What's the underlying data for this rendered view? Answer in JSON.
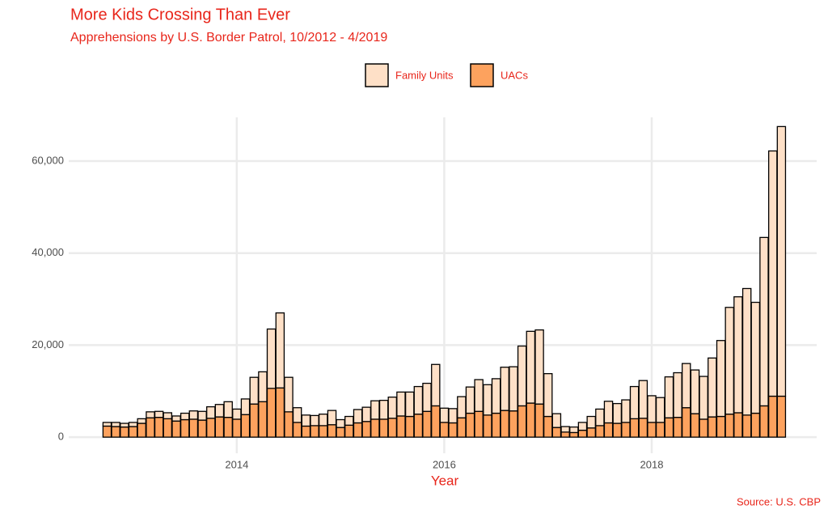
{
  "chart_data": {
    "type": "bar",
    "stacked": true,
    "title": "More Kids Crossing Than Ever",
    "subtitle": "Apprehensions by U.S. Border Patrol, 10/2012 - 4/2019",
    "x_label": "Year",
    "source": "Source: U.S. CBP",
    "x": [
      2012.75,
      2012.833,
      2012.917,
      2013,
      2013.083,
      2013.167,
      2013.25,
      2013.333,
      2013.417,
      2013.5,
      2013.583,
      2013.667,
      2013.75,
      2013.833,
      2013.917,
      2014,
      2014.083,
      2014.167,
      2014.25,
      2014.333,
      2014.417,
      2014.5,
      2014.583,
      2014.667,
      2014.75,
      2014.833,
      2014.917,
      2015,
      2015.083,
      2015.167,
      2015.25,
      2015.333,
      2015.417,
      2015.5,
      2015.583,
      2015.667,
      2015.75,
      2015.833,
      2015.917,
      2016,
      2016.083,
      2016.167,
      2016.25,
      2016.333,
      2016.417,
      2016.5,
      2016.583,
      2016.667,
      2016.75,
      2016.833,
      2016.917,
      2017,
      2017.083,
      2017.167,
      2017.25,
      2017.333,
      2017.417,
      2017.5,
      2017.583,
      2017.667,
      2017.75,
      2017.833,
      2017.917,
      2018,
      2018.083,
      2018.167,
      2018.25,
      2018.333,
      2018.417,
      2018.5,
      2018.583,
      2018.667,
      2018.75,
      2018.833,
      2018.917,
      2019,
      2019.083,
      2019.167,
      2019.25
    ],
    "series": [
      {
        "name": "Family Units",
        "color": "#fee0c7",
        "values": [
          800,
          900,
          800,
          900,
          1000,
          1300,
          1300,
          1300,
          1100,
          1400,
          1800,
          1900,
          2500,
          2700,
          3400,
          2200,
          3400,
          5800,
          6500,
          12900,
          16300,
          7500,
          3200,
          2400,
          2200,
          2500,
          3100,
          1700,
          1900,
          2900,
          3100,
          4000,
          4100,
          4600,
          5200,
          5300,
          6000,
          6100,
          9000,
          3100,
          3100,
          4600,
          5700,
          6900,
          6600,
          7500,
          9400,
          9600,
          13000,
          15600,
          16100,
          9300,
          3000,
          1200,
          1200,
          1700,
          2500,
          3600,
          4700,
          4300,
          4900,
          7000,
          8200,
          5800,
          5400,
          8900,
          9700,
          9600,
          9500,
          9300,
          12800,
          16500,
          23200,
          25200,
          27500,
          24100,
          36600,
          53300,
          58600
        ]
      },
      {
        "name": "UACs",
        "color": "#fda25e",
        "values": [
          2400,
          2300,
          2200,
          2300,
          3000,
          4200,
          4300,
          4000,
          3500,
          3800,
          3900,
          3700,
          4100,
          4400,
          4300,
          3900,
          4900,
          7200,
          7700,
          10600,
          10700,
          5500,
          3200,
          2400,
          2500,
          2500,
          2700,
          2100,
          2600,
          3100,
          3400,
          3900,
          3900,
          4100,
          4600,
          4500,
          5000,
          5600,
          6800,
          3200,
          3100,
          4200,
          5200,
          5600,
          4800,
          5200,
          5800,
          5700,
          6800,
          7400,
          7200,
          4500,
          2100,
          1100,
          1000,
          1500,
          2000,
          2500,
          3100,
          3000,
          3200,
          4000,
          4100,
          3200,
          3200,
          4200,
          4300,
          6400,
          5100,
          3900,
          4400,
          4500,
          5000,
          5300,
          4800,
          5200,
          6800,
          8900,
          8900
        ]
      }
    ],
    "xlim": [
      2012.38,
      2019.59
    ],
    "xticks": [
      2014,
      2016,
      2018
    ],
    "ylim": [
      -3500,
      69500
    ],
    "yticks": [
      0,
      {
        "value": 20000,
        "label": "20,000"
      },
      {
        "value": 40000,
        "label": "40,000"
      },
      {
        "value": 60000,
        "label": "60,000"
      }
    ],
    "grid": true,
    "legend": "top"
  }
}
